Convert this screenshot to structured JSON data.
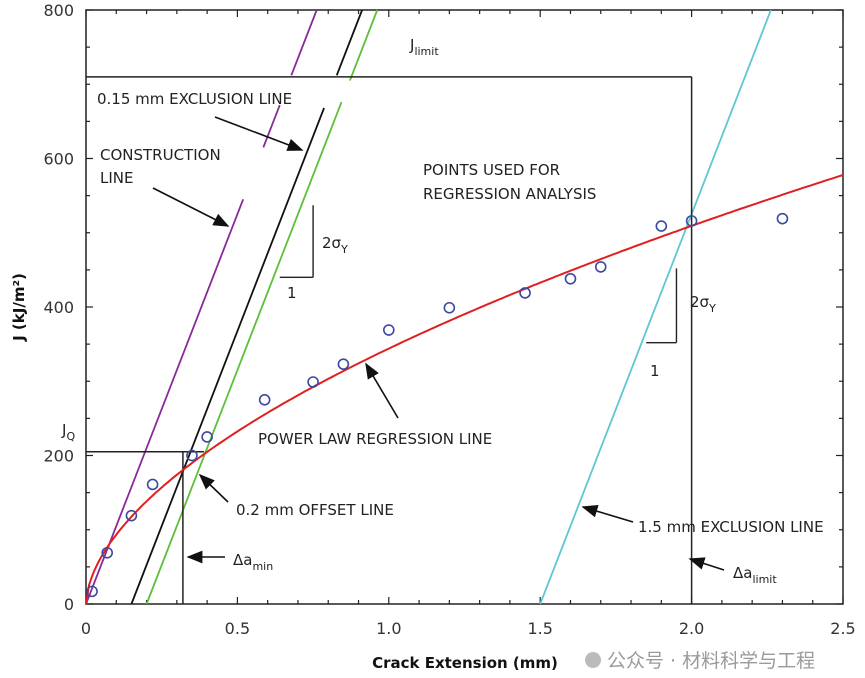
{
  "chart_data": {
    "type": "scatter",
    "xlabel": "Crack Extension (mm)",
    "ylabel": "J (kJ/m²)",
    "xlim": [
      0,
      2.5
    ],
    "ylim": [
      0,
      800
    ],
    "x_ticks": [
      "0",
      "0.5",
      "1.0",
      "1.5",
      "2.0",
      "2.5"
    ],
    "y_ticks": [
      "0",
      "200",
      "400",
      "600",
      "800"
    ],
    "grid": false,
    "points": [
      {
        "x": 0.02,
        "y": 17
      },
      {
        "x": 0.07,
        "y": 69
      },
      {
        "x": 0.15,
        "y": 119
      },
      {
        "x": 0.22,
        "y": 161
      },
      {
        "x": 0.35,
        "y": 200
      },
      {
        "x": 0.4,
        "y": 225
      },
      {
        "x": 0.59,
        "y": 275
      },
      {
        "x": 0.75,
        "y": 299
      },
      {
        "x": 0.85,
        "y": 323
      },
      {
        "x": 1.0,
        "y": 369
      },
      {
        "x": 1.2,
        "y": 399
      },
      {
        "x": 1.45,
        "y": 419
      },
      {
        "x": 1.6,
        "y": 438
      },
      {
        "x": 1.7,
        "y": 454
      },
      {
        "x": 1.9,
        "y": 509
      },
      {
        "x": 2.0,
        "y": 516
      },
      {
        "x": 2.3,
        "y": 519
      }
    ],
    "power_law": {
      "C": 344,
      "p": 0.566,
      "color": "#e02020"
    },
    "slope_2sigmaY": 1050,
    "construction_line": {
      "offset": 0,
      "color": "#8a2a9a"
    },
    "exclusion_015": {
      "offset": 0.15,
      "color": "#111111"
    },
    "offset_02": {
      "offset": 0.2,
      "color": "#5cbf3a"
    },
    "exclusion_15": {
      "offset": 1.5,
      "color": "#5ec8d0"
    },
    "J_limit": 710,
    "delta_a_limit": 2.0,
    "J_Q": 205,
    "delta_a_min": 0.32,
    "point_color": "#3a4aa0",
    "annotations": {
      "exclusion_015": "0.15 mm EXCLUSION LINE",
      "construction_1": "CONSTRUCTION",
      "construction_2": "LINE",
      "j_limit": "J",
      "j_limit_sub": "limit",
      "points_1": "POINTS USED FOR",
      "points_2": "REGRESSION ANALYSIS",
      "slope_rise": "2σ",
      "slope_rise_sub": "Y",
      "slope_run": "1",
      "power_law": "POWER LAW REGRESSION LINE",
      "jq": "J",
      "jq_sub": "Q",
      "offset_02": "0.2 mm OFFSET LINE",
      "da_min": "Δa",
      "da_min_sub": "min",
      "exclusion_15": "1.5 mm EXCLUSION LINE",
      "da_limit": "Δa",
      "da_limit_sub": "limit"
    }
  },
  "watermark": "公众号 · 材料科学与工程"
}
